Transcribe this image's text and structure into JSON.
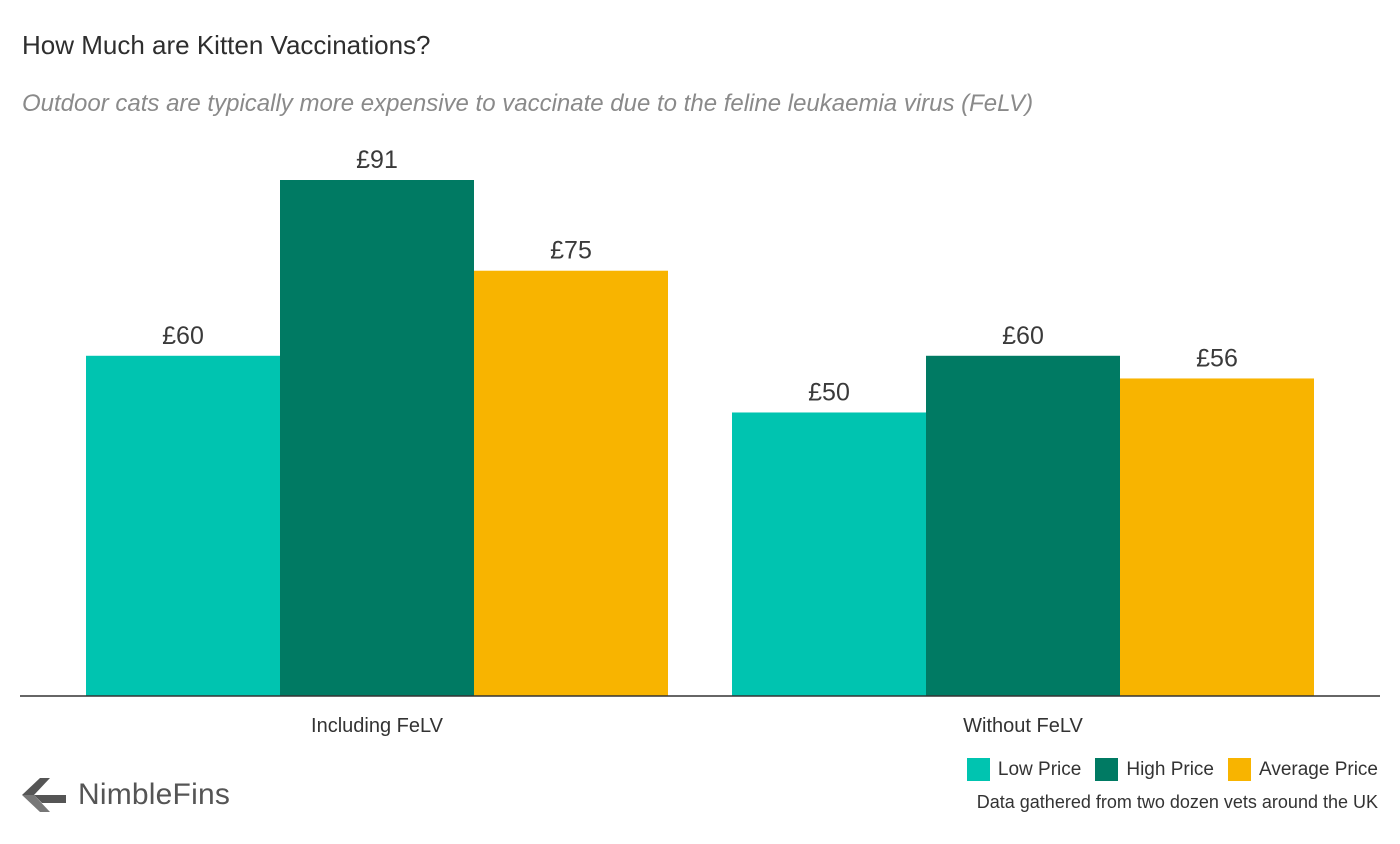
{
  "chart_data": {
    "type": "bar",
    "title": "How Much are Kitten Vaccinations?",
    "subtitle": "Outdoor cats are typically more expensive to vaccinate due to the feline leukaemia virus (FeLV)",
    "categories": [
      "Including FeLV",
      "Without FeLV"
    ],
    "series": [
      {
        "name": "Low Price",
        "values": [
          60,
          50
        ],
        "labels": [
          "£60",
          "£50"
        ],
        "color": "#00C4B0"
      },
      {
        "name": "High Price",
        "values": [
          91,
          60
        ],
        "labels": [
          "£91",
          "£60"
        ],
        "color": "#007A63"
      },
      {
        "name": "Average Price",
        "values": [
          75,
          56
        ],
        "labels": [
          "£75",
          "£56"
        ],
        "color": "#F8B400"
      }
    ],
    "ylim": [
      0,
      91
    ],
    "grid": false,
    "legend_position": "bottom-right",
    "source_note": "Data gathered from two dozen vets around the UK"
  },
  "branding": {
    "logo_text": "NimbleFins",
    "logo_color": "#555555"
  }
}
